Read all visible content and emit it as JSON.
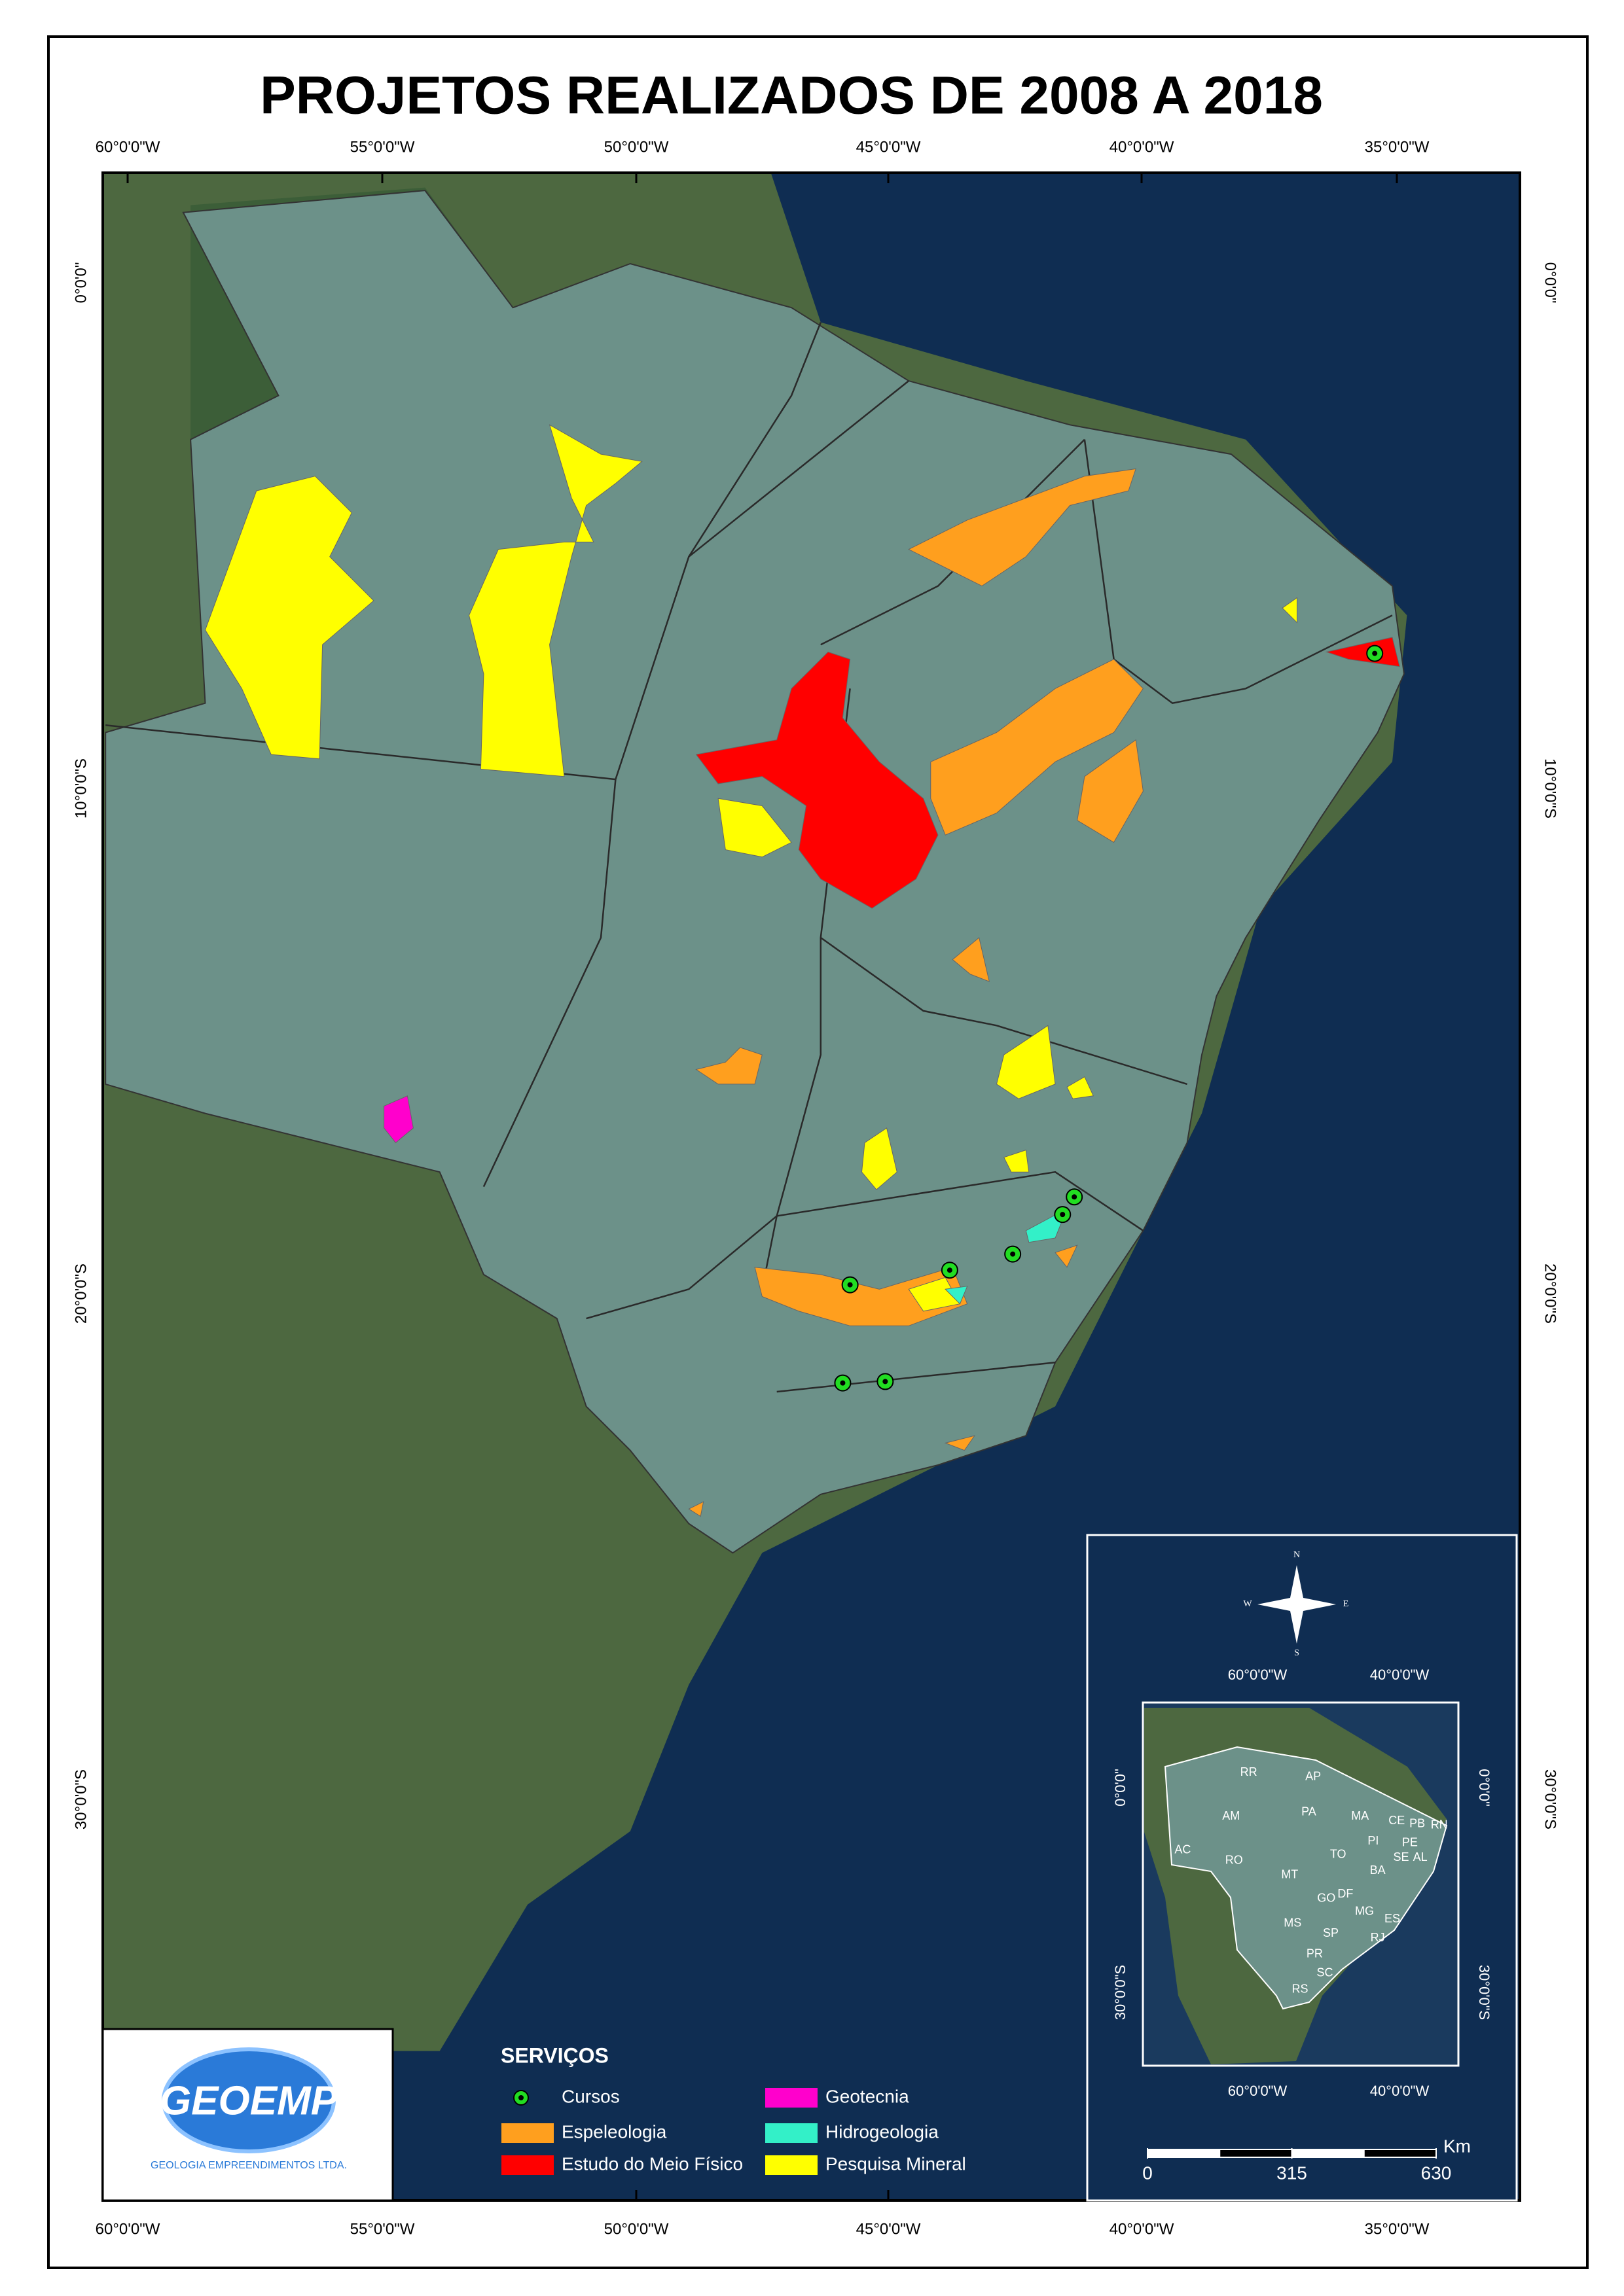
{
  "title": "PROJETOS REALIZADOS DE 2008 A 2018",
  "frame": {
    "top_labels": [
      "60°0'0\"W",
      "55°0'0\"W",
      "50°0'0\"W",
      "45°0'0\"W",
      "40°0'0\"W",
      "35°0'0\"W"
    ],
    "bottom_labels": [
      "60°0'0\"W",
      "55°0'0\"W",
      "50°0'0\"W",
      "45°0'0\"W",
      "40°0'0\"W",
      "35°0'0\"W"
    ],
    "left_labels": [
      "0°0'0\"",
      "10°0'0\"S",
      "20°0'0\"S",
      "30°0'0\"S"
    ],
    "right_labels": [
      "0°0'0\"",
      "10°0'0\"S",
      "20°0'0\"S",
      "30°0'0\"S"
    ]
  },
  "legend": {
    "title": "SERVIÇOS",
    "items": [
      {
        "name": "Cursos",
        "color": "#22dd22"
      },
      {
        "name": "Espeleologia",
        "color": "#ff9f1e"
      },
      {
        "name": "Estudo do Meio Físico",
        "color": "#ff0000"
      },
      {
        "name": "Geotecnia",
        "color": "#ff00cc"
      },
      {
        "name": "Hidrogeologia",
        "color": "#33f0c8"
      },
      {
        "name": "Pesquisa Mineral",
        "color": "#ffff00"
      }
    ]
  },
  "logo": {
    "name": "GEOEMP",
    "subtitle": "GEOLOGIA EMPREENDIMENTOS LTDA."
  },
  "inset": {
    "compass": [
      "N",
      "S",
      "E",
      "W"
    ],
    "top_labels": [
      "60°0'0\"W",
      "40°0'0\"W"
    ],
    "bottom_labels": [
      "60°0'0\"W",
      "40°0'0\"W"
    ],
    "left_labels": [
      "0°0'0\"",
      "30°0'0\"S"
    ],
    "right_labels": [
      "0°0'0\"",
      "30°0'0\"S"
    ],
    "states": [
      "RR",
      "AP",
      "AM",
      "PA",
      "MA",
      "CE",
      "PB",
      "RN",
      "PI",
      "PE",
      "AC",
      "RO",
      "TO",
      "SE",
      "AL",
      "MT",
      "BA",
      "GO",
      "DF",
      "MG",
      "MS",
      "ES",
      "SP",
      "RJ",
      "PR",
      "SC",
      "RS"
    ]
  },
  "scale": {
    "unit": "Km",
    "ticks": [
      0,
      315,
      630
    ]
  }
}
